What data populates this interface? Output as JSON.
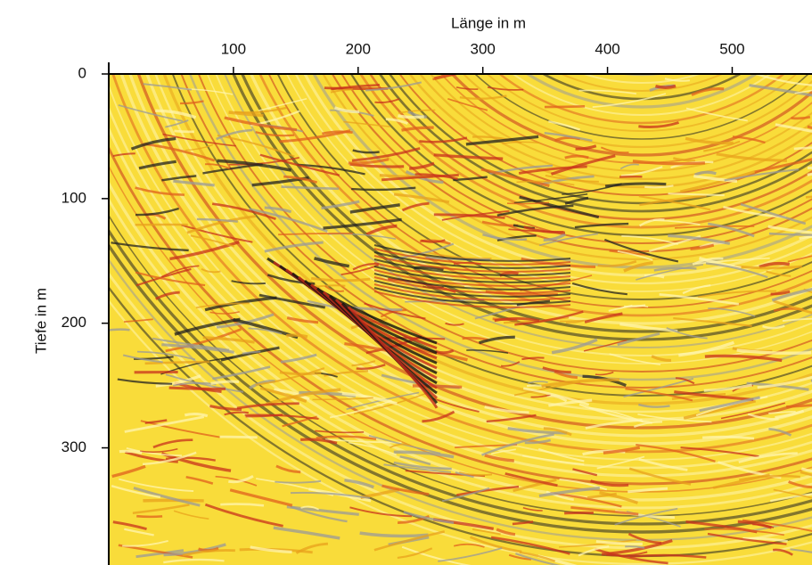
{
  "chart_data": {
    "type": "seismic",
    "x_label": "Länge in m",
    "y_label": "Tiefe in m",
    "xlim": [
      0,
      564
    ],
    "xticks": [
      100,
      200,
      300,
      400,
      500
    ],
    "ylim": [
      0,
      394
    ],
    "yticks": [
      0,
      100,
      200,
      300
    ],
    "y_inverted": true,
    "x_axis_position": "top"
  }
}
